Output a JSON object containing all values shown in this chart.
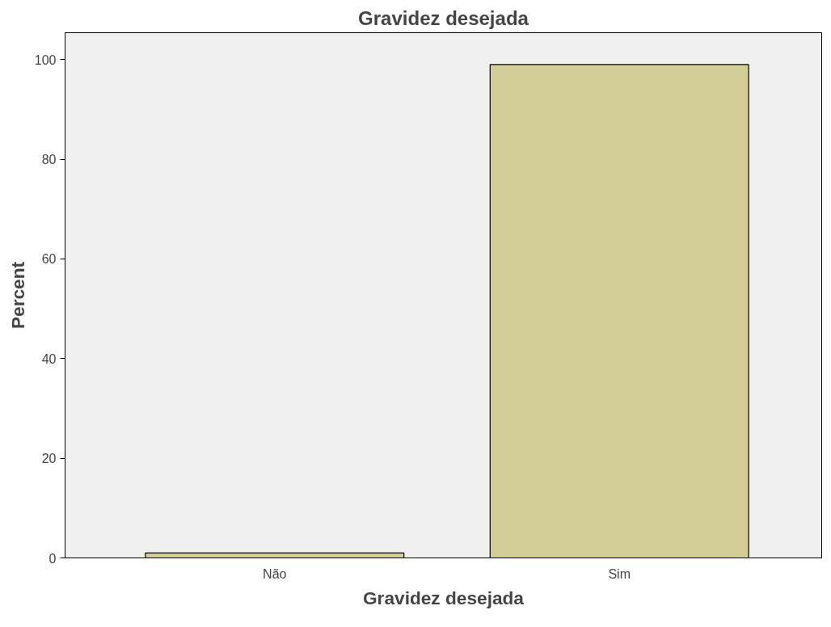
{
  "chart_data": {
    "type": "bar",
    "title": "Gravidez desejada",
    "xlabel": "Gravidez desejada",
    "ylabel": "Percent",
    "categories": [
      "Não",
      "Sim"
    ],
    "values": [
      1,
      99
    ],
    "color": "#d3ce98",
    "ylim": [
      0,
      105.4
    ],
    "yticks": [
      0,
      20,
      40,
      60,
      80,
      100
    ],
    "grid": false
  }
}
